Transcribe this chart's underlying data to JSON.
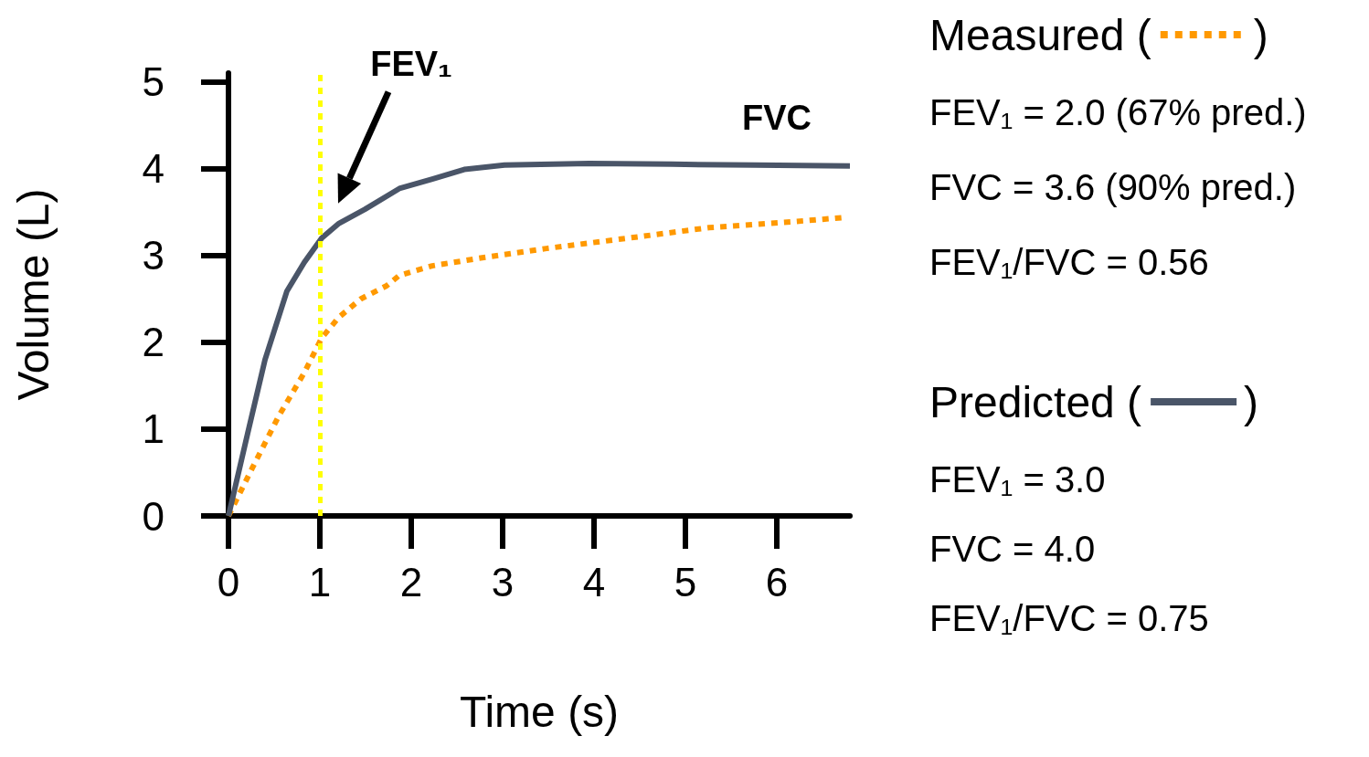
{
  "chart_data": {
    "type": "line",
    "xlabel": "Time (s)",
    "ylabel": "Volume (L)",
    "xlim": [
      0,
      6.8
    ],
    "xticks": [
      0,
      1,
      2,
      3,
      4,
      5,
      6
    ],
    "ylim": [
      0,
      5.1
    ],
    "yticks": [
      0,
      1,
      2,
      3,
      4,
      5
    ],
    "grid": false,
    "marker": "none",
    "series": [
      {
        "name": "Measured (        )",
        "color": "#ff9900",
        "line_style": "dotted",
        "x": [
          0,
          0.26,
          0.55,
          0.83,
          1.02,
          1.21,
          1.45,
          1.73,
          1.87,
          2.23,
          2.76,
          3.48,
          4.38,
          5.26,
          6.2,
          6.77
        ],
        "values": [
          0,
          0.55,
          1.15,
          1.65,
          2.05,
          2.29,
          2.5,
          2.65,
          2.77,
          2.88,
          2.97,
          3.08,
          3.2,
          3.32,
          3.39,
          3.44
        ]
      },
      {
        "name": "Predicted (        )",
        "color": "#4a5568",
        "line_style": "solid",
        "x": [
          0,
          0.21,
          0.4,
          0.64,
          0.83,
          1.02,
          1.21,
          1.49,
          1.87,
          2.23,
          2.58,
          3.02,
          3.95,
          4.85,
          5.75,
          6.8
        ],
        "values": [
          0,
          0.95,
          1.8,
          2.59,
          2.92,
          3.2,
          3.37,
          3.53,
          3.77,
          3.88,
          3.99,
          4.04,
          4.06,
          4.05,
          4.04,
          4.03
        ]
      }
    ],
    "ref_lines": [
      {
        "axis": "x",
        "value": 1,
        "color": "#ffff00",
        "line_style": "dotted"
      }
    ],
    "annotations": [
      "FEV₁",
      "FVC",
      "FEV₁ = 2.0 (67% pred.)",
      "FVC = 3.6 (90% pred.)",
      "FEV₁/FVC = 0.56",
      "FEV₁ = 3.0",
      "FVC = 4.0",
      "FEV₁/FVC = 0.75"
    ]
  }
}
